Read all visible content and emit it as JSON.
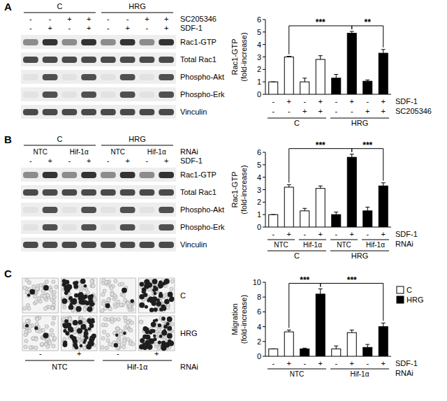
{
  "panels": [
    "A",
    "B",
    "C"
  ],
  "blots": [
    {
      "groups": [
        {
          "label": "C",
          "span": 4
        },
        {
          "label": "HRG",
          "span": 4
        }
      ],
      "rows": [
        {
          "label": "SC205346",
          "values": [
            "-",
            "-",
            "+",
            "+",
            "-",
            "-",
            "+",
            "+"
          ]
        },
        {
          "label": "SDF-1",
          "values": [
            "-",
            "+",
            "-",
            "+",
            "-",
            "+",
            "-",
            "+"
          ]
        }
      ],
      "bands": [
        "Rac1-GTP",
        "Total Rac1",
        "Phospho-Akt",
        "Phospho-Erk",
        "Vinculin"
      ]
    },
    {
      "groups": [
        {
          "label": "C",
          "span": 4
        },
        {
          "label": "HRG",
          "span": 4
        }
      ],
      "rows": [
        {
          "label": "RNAi",
          "spans": [
            {
              "label": "NTC",
              "span": 2
            },
            {
              "label": "Hif-1α",
              "span": 2
            },
            {
              "label": "NTC",
              "span": 2
            },
            {
              "label": "Hif-1α",
              "span": 2
            }
          ]
        },
        {
          "label": "SDF-1",
          "values": [
            "-",
            "+",
            "-",
            "+",
            "-",
            "+",
            "-",
            "+"
          ]
        }
      ],
      "bands": [
        "Rac1-GTP",
        "Total Rac1",
        "Phospho-Akt",
        "Phospho-Erk",
        "Vinculin"
      ]
    }
  ],
  "micrographs": {
    "rows": [
      "C",
      "HRG"
    ],
    "sdf": [
      "-",
      "+",
      "-",
      "+"
    ],
    "rnai": {
      "label": "RNAi",
      "spans": [
        {
          "label": "NTC",
          "span": 2
        },
        {
          "label": "Hif-1α",
          "span": 2
        }
      ]
    }
  },
  "chart_data": [
    {
      "type": "bar",
      "y_label": [
        "Rac1-GTP",
        "(fold-increase)"
      ],
      "categories": [
        null,
        null,
        null,
        null,
        null,
        null,
        null,
        null
      ],
      "ylim": [
        0,
        6
      ],
      "yticks": [
        0,
        1,
        2,
        3,
        4,
        5,
        6
      ],
      "series": [
        {
          "color": "#ffffff",
          "values": [
            1,
            3.0,
            1.0,
            2.8,
            null,
            null,
            null,
            null
          ],
          "errors": [
            0,
            0.05,
            0.3,
            0.3,
            null,
            null,
            null,
            null
          ]
        },
        {
          "color": "#000000",
          "values": [
            null,
            null,
            null,
            null,
            1.3,
            4.9,
            1.05,
            3.3
          ],
          "errors": [
            null,
            null,
            null,
            null,
            0.3,
            0.15,
            0.1,
            0.3
          ]
        }
      ],
      "rows": [
        {
          "label": "SDF-1",
          "values": [
            "-",
            "+",
            "-",
            "+",
            "-",
            "+",
            "-",
            "+"
          ]
        },
        {
          "label": "SC205346",
          "values": [
            "-",
            "-",
            "+",
            "+",
            "-",
            "-",
            "+",
            "+"
          ]
        }
      ],
      "groups": [
        {
          "label": "C",
          "span": 4
        },
        {
          "label": "HRG",
          "span": 4
        }
      ],
      "annotations": [
        {
          "text": "***",
          "from": 1,
          "to": 5
        },
        {
          "text": "**",
          "from": 5,
          "to": 7
        }
      ]
    },
    {
      "type": "bar",
      "y_label": [
        "Rac1-GTP",
        "(fold-increase)"
      ],
      "categories": [
        null,
        null,
        null,
        null,
        null,
        null,
        null,
        null
      ],
      "ylim": [
        0,
        6
      ],
      "yticks": [
        0,
        1,
        2,
        3,
        4,
        5,
        6
      ],
      "series": [
        {
          "color": "#ffffff",
          "values": [
            1,
            3.2,
            1.3,
            3.1,
            null,
            null,
            null,
            null
          ],
          "errors": [
            0,
            0.2,
            0.2,
            0.2,
            null,
            null,
            null,
            null
          ]
        },
        {
          "color": "#000000",
          "values": [
            null,
            null,
            null,
            null,
            1.0,
            5.6,
            1.3,
            3.3
          ],
          "errors": [
            null,
            null,
            null,
            null,
            0.2,
            0.25,
            0.3,
            0.25
          ]
        }
      ],
      "rows": [
        {
          "label": "SDF-1",
          "values": [
            "-",
            "+",
            "-",
            "+",
            "-",
            "+",
            "-",
            "+"
          ]
        },
        {
          "label": "RNAi",
          "spans": [
            {
              "label": "NTC",
              "span": 2
            },
            {
              "label": "Hif-1α",
              "span": 2
            },
            {
              "label": "NTC",
              "span": 2
            },
            {
              "label": "Hif-1α",
              "span": 2
            }
          ]
        }
      ],
      "groups": [
        {
          "label": "C",
          "span": 4
        },
        {
          "label": "HRG",
          "span": 4
        }
      ],
      "annotations": [
        {
          "text": "***",
          "from": 1,
          "to": 5
        },
        {
          "text": "***",
          "from": 5,
          "to": 7
        }
      ]
    },
    {
      "type": "bar",
      "y_label": [
        "Migration",
        "(fold-increase)"
      ],
      "categories": [
        null,
        null,
        null,
        null,
        null,
        null,
        null,
        null
      ],
      "ylim": [
        0,
        10
      ],
      "yticks": [
        0,
        2,
        4,
        6,
        8,
        10
      ],
      "legend": "right",
      "series": [
        {
          "name": "C",
          "color": "#ffffff",
          "values": [
            1,
            3.3,
            null,
            null,
            1.0,
            3.2,
            null,
            null
          ],
          "errors": [
            0,
            0.25,
            null,
            null,
            0.4,
            0.35,
            null,
            null
          ]
        },
        {
          "name": "HRG",
          "color": "#000000",
          "values": [
            null,
            null,
            1.0,
            8.4,
            null,
            null,
            1.2,
            4.0
          ],
          "errors": [
            null,
            null,
            0.1,
            0.7,
            null,
            null,
            0.4,
            0.5
          ]
        }
      ],
      "rows": [
        {
          "label": "SDF-1",
          "values": [
            "-",
            "+",
            "-",
            "+",
            "-",
            "+",
            "-",
            "+"
          ]
        },
        {
          "label": "RNAi",
          "spans": [
            {
              "label": "NTC",
              "span": 4
            },
            {
              "label": "Hif-1α",
              "span": 4
            }
          ]
        }
      ],
      "annotations": [
        {
          "text": "***",
          "from": 1,
          "to": 3
        },
        {
          "text": "***",
          "from": 3,
          "to": 7
        }
      ]
    }
  ]
}
